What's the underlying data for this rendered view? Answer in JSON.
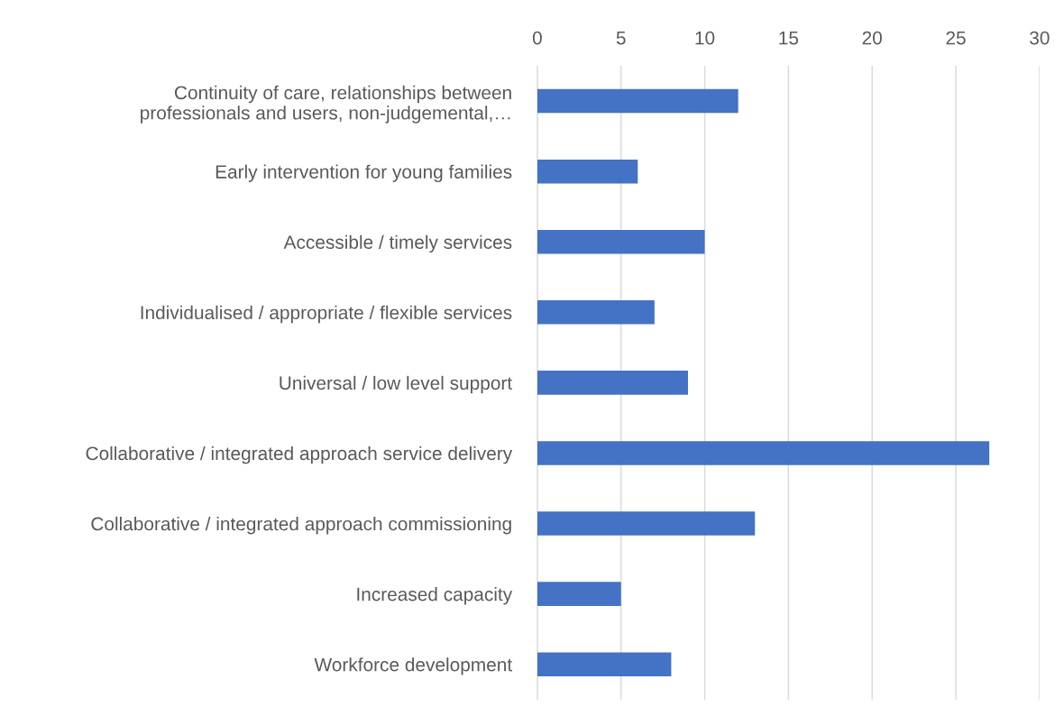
{
  "chart_data": {
    "type": "bar",
    "orientation": "horizontal",
    "categories": [
      "Continuity of care, relationships between\nprofessionals and users, non-judgemental,…",
      "Early intervention for young families",
      "Accessible / timely services",
      "Individualised / appropriate / flexible services",
      "Universal / low level support",
      "Collaborative / integrated approach service delivery",
      "Collaborative / integrated approach commissioning",
      "Increased capacity",
      "Workforce development"
    ],
    "values": [
      12,
      6,
      10,
      7,
      9,
      27,
      13,
      5,
      8
    ],
    "color": "#4472c4",
    "xlim": [
      0,
      30
    ],
    "xticks": [
      0,
      5,
      10,
      15,
      20,
      25,
      30
    ],
    "grid": "x",
    "legend": false
  }
}
